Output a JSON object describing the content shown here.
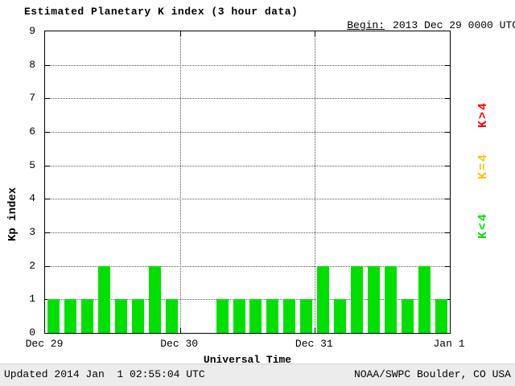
{
  "header": {
    "begin_label": "Begin:",
    "begin_value": "2013 Dec 29 0000 UTC"
  },
  "legend": [
    {
      "name": "k-above-4",
      "label": "K>4",
      "color": "#ff0000"
    },
    {
      "name": "k-equal-4",
      "label": "K=4",
      "color": "#ffc000"
    },
    {
      "name": "k-below-4",
      "label": "K<4",
      "color": "#00e000"
    }
  ],
  "footer": {
    "updated": "Updated 2014 Jan  1 02:55:04 UTC",
    "source": "NOAA/SWPC Boulder, CO USA"
  },
  "chart_data": {
    "type": "bar",
    "title": "Estimated Planetary K index (3 hour data)",
    "xlabel": "Universal Time",
    "ylabel": "Kp index",
    "ylim": [
      0,
      9
    ],
    "y_ticks": [
      0,
      1,
      2,
      3,
      4,
      5,
      6,
      7,
      8,
      9
    ],
    "x_ticks": [
      "Dec 29",
      "Dec 30",
      "Dec 31",
      "Jan 1"
    ],
    "bars_per_day": 8,
    "bar_interval_hours": 3,
    "bar_color": "#00e000",
    "grid": "dotted",
    "legend_position": "right",
    "values": [
      1,
      1,
      1,
      2,
      1,
      1,
      2,
      1,
      0,
      0,
      1,
      1,
      1,
      1,
      1,
      1,
      2,
      1,
      2,
      2,
      2,
      1,
      2,
      1
    ]
  }
}
